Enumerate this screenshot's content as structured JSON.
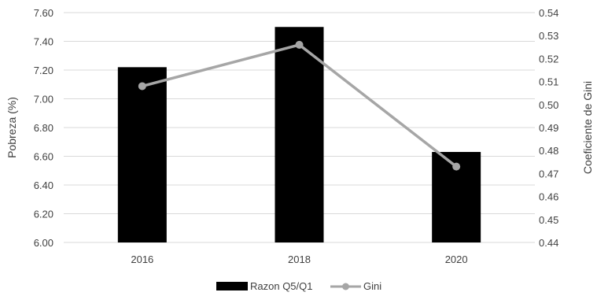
{
  "chart_data": {
    "type": "bar",
    "categories": [
      "2016",
      "2018",
      "2020"
    ],
    "series": [
      {
        "name": "Razon Q5/Q1",
        "chart_type": "bar",
        "axis": "left",
        "values": [
          7.22,
          7.5,
          6.63
        ],
        "color": "#000000"
      },
      {
        "name": "Gini",
        "chart_type": "line",
        "axis": "right",
        "values": [
          0.508,
          0.526,
          0.473
        ],
        "color": "#A6A6A6"
      }
    ],
    "ylabel": "Pobreza (%)",
    "y2label": "Coeficiente de Gini",
    "ylim": [
      6.0,
      7.6
    ],
    "y2lim": [
      0.44,
      0.54
    ],
    "yticks": [
      "6.00",
      "6.20",
      "6.40",
      "6.60",
      "6.80",
      "7.00",
      "7.20",
      "7.40",
      "7.60"
    ],
    "y2ticks": [
      "0.44",
      "0.45",
      "0.46",
      "0.47",
      "0.48",
      "0.49",
      "0.50",
      "0.51",
      "0.52",
      "0.53",
      "0.54"
    ],
    "grid": true,
    "legend_position": "bottom"
  }
}
